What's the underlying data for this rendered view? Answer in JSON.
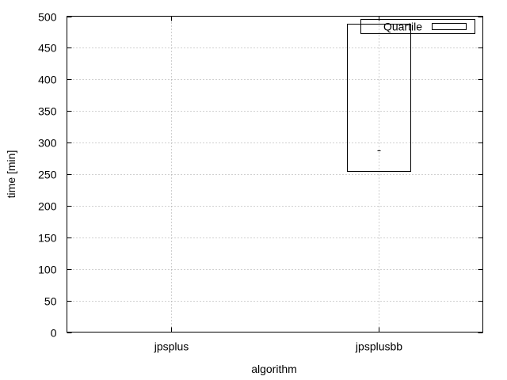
{
  "chart_data": {
    "type": "box",
    "xlabel": "algorithm",
    "ylabel": "time [min]",
    "ylim": [
      0,
      500
    ],
    "yticks": [
      0,
      50,
      100,
      150,
      200,
      250,
      300,
      350,
      400,
      450,
      500
    ],
    "categories": [
      "jpsplus",
      "jpsplusbb"
    ],
    "series": [
      {
        "name": "Quartile",
        "boxes": [
          null,
          {
            "q1": 255,
            "median": 288,
            "q3": 488
          }
        ]
      }
    ],
    "grid": true,
    "legend": {
      "position": "top-right",
      "entries": [
        "Quartile"
      ]
    }
  }
}
